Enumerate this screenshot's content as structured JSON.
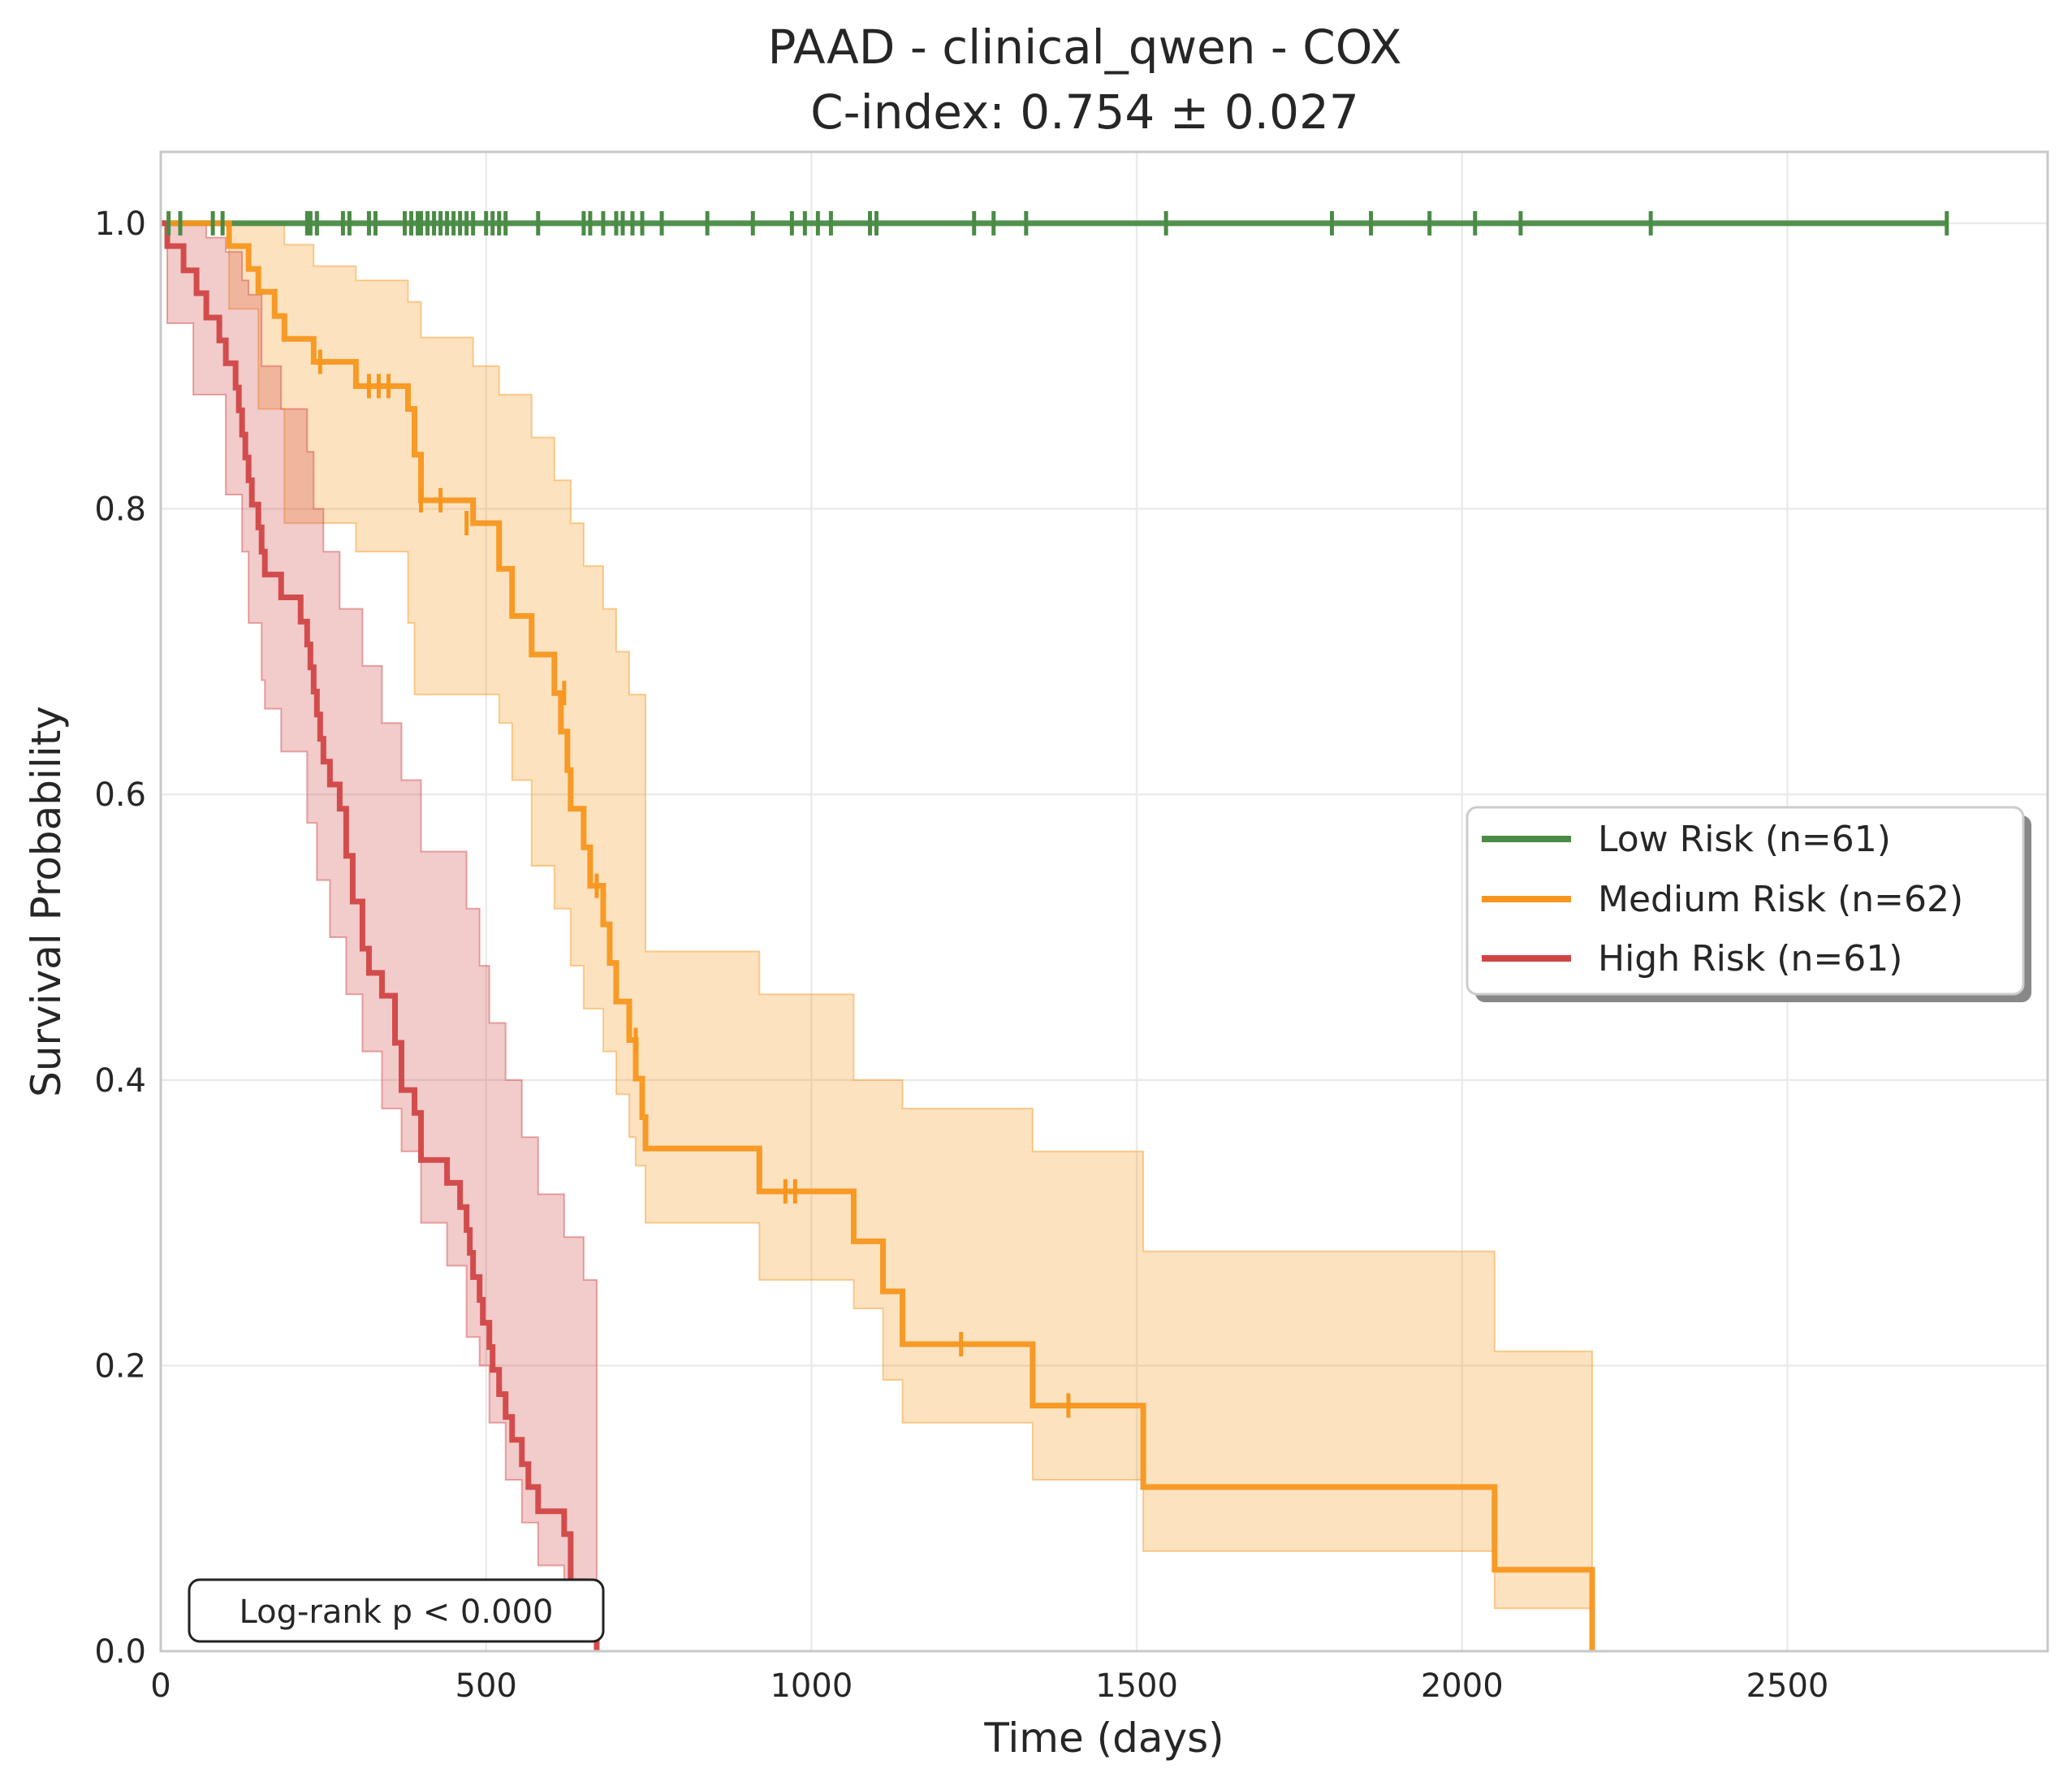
{
  "chart_data": {
    "type": "line",
    "title": "PAAD - clinical_qwen - COX",
    "subtitle": "C-index: 0.754 ± 0.027",
    "xlabel": "Time (days)",
    "ylabel": "Survival Probability",
    "xlim": [
      0,
      2900
    ],
    "ylim": [
      0,
      1.05
    ],
    "xticks": [
      0,
      500,
      1000,
      1500,
      2000,
      2500
    ],
    "xtick_labels": [
      "0",
      "500",
      "1000",
      "1500",
      "2000",
      "2500"
    ],
    "yticks": [
      0.0,
      0.2,
      0.4,
      0.6,
      0.8,
      1.0
    ],
    "ytick_labels": [
      "0.0",
      "0.2",
      "0.4",
      "0.6",
      "0.8",
      "1.0"
    ],
    "grid": true,
    "legend_position": "center-right",
    "annotation": "Log-rank p < 0.000",
    "series": [
      {
        "name": "Low Risk (n=61)",
        "color": "#4a8b45",
        "steps": [
          [
            0,
            1.0
          ],
          [
            2745,
            1.0
          ]
        ],
        "ci_lower": [],
        "ci_upper": [],
        "censored": [
          [
            12,
            1.0
          ],
          [
            30,
            1.0
          ],
          [
            80,
            1.0
          ],
          [
            95,
            1.0
          ],
          [
            225,
            1.0
          ],
          [
            230,
            1.0
          ],
          [
            240,
            1.0
          ],
          [
            280,
            1.0
          ],
          [
            290,
            1.0
          ],
          [
            320,
            1.0
          ],
          [
            330,
            1.0
          ],
          [
            375,
            1.0
          ],
          [
            385,
            1.0
          ],
          [
            395,
            1.0
          ],
          [
            400,
            1.0
          ],
          [
            410,
            1.0
          ],
          [
            420,
            1.0
          ],
          [
            430,
            1.0
          ],
          [
            440,
            1.0
          ],
          [
            450,
            1.0
          ],
          [
            460,
            1.0
          ],
          [
            470,
            1.0
          ],
          [
            480,
            1.0
          ],
          [
            500,
            1.0
          ],
          [
            510,
            1.0
          ],
          [
            520,
            1.0
          ],
          [
            530,
            1.0
          ],
          [
            580,
            1.0
          ],
          [
            650,
            1.0
          ],
          [
            660,
            1.0
          ],
          [
            680,
            1.0
          ],
          [
            700,
            1.0
          ],
          [
            710,
            1.0
          ],
          [
            725,
            1.0
          ],
          [
            740,
            1.0
          ],
          [
            770,
            1.0
          ],
          [
            840,
            1.0
          ],
          [
            910,
            1.0
          ],
          [
            970,
            1.0
          ],
          [
            990,
            1.0
          ],
          [
            1010,
            1.0
          ],
          [
            1030,
            1.0
          ],
          [
            1090,
            1.0
          ],
          [
            1100,
            1.0
          ],
          [
            1250,
            1.0
          ],
          [
            1280,
            1.0
          ],
          [
            1330,
            1.0
          ],
          [
            1545,
            1.0
          ],
          [
            1800,
            1.0
          ],
          [
            1860,
            1.0
          ],
          [
            1950,
            1.0
          ],
          [
            2020,
            1.0
          ],
          [
            2090,
            1.0
          ],
          [
            2290,
            1.0
          ],
          [
            2745,
            1.0
          ]
        ]
      },
      {
        "name": "Medium Risk (n=62)",
        "color": "#f7961e",
        "steps": [
          [
            0,
            1.0
          ],
          [
            105,
            1.0
          ],
          [
            105,
            0.984
          ],
          [
            135,
            0.968
          ],
          [
            150,
            0.952
          ],
          [
            175,
            0.935
          ],
          [
            190,
            0.919
          ],
          [
            235,
            0.903
          ],
          [
            300,
            0.886
          ],
          [
            380,
            0.87
          ],
          [
            390,
            0.838
          ],
          [
            400,
            0.806
          ],
          [
            480,
            0.79
          ],
          [
            520,
            0.758
          ],
          [
            540,
            0.725
          ],
          [
            570,
            0.698
          ],
          [
            605,
            0.671
          ],
          [
            615,
            0.644
          ],
          [
            625,
            0.617
          ],
          [
            630,
            0.59
          ],
          [
            650,
            0.563
          ],
          [
            660,
            0.536
          ],
          [
            680,
            0.509
          ],
          [
            690,
            0.482
          ],
          [
            700,
            0.455
          ],
          [
            720,
            0.428
          ],
          [
            730,
            0.401
          ],
          [
            740,
            0.374
          ],
          [
            745,
            0.352
          ],
          [
            920,
            0.322
          ],
          [
            1065,
            0.287
          ],
          [
            1110,
            0.252
          ],
          [
            1140,
            0.215
          ],
          [
            1340,
            0.172
          ],
          [
            1510,
            0.115
          ],
          [
            2050,
            0.057
          ],
          [
            2200,
            0.0
          ]
        ],
        "ci_lower": [
          [
            0,
            1.0
          ],
          [
            105,
            0.94
          ],
          [
            150,
            0.87
          ],
          [
            190,
            0.79
          ],
          [
            300,
            0.77
          ],
          [
            380,
            0.72
          ],
          [
            390,
            0.67
          ],
          [
            520,
            0.65
          ],
          [
            540,
            0.61
          ],
          [
            570,
            0.55
          ],
          [
            605,
            0.52
          ],
          [
            630,
            0.48
          ],
          [
            650,
            0.45
          ],
          [
            680,
            0.42
          ],
          [
            700,
            0.39
          ],
          [
            720,
            0.36
          ],
          [
            730,
            0.34
          ],
          [
            745,
            0.3
          ],
          [
            920,
            0.26
          ],
          [
            1065,
            0.24
          ],
          [
            1110,
            0.19
          ],
          [
            1140,
            0.16
          ],
          [
            1340,
            0.12
          ],
          [
            1510,
            0.07
          ],
          [
            2050,
            0.03
          ],
          [
            2200,
            0.03
          ]
        ],
        "ci_upper": [
          [
            0,
            1.0
          ],
          [
            105,
            1.0
          ],
          [
            135,
            1.0
          ],
          [
            190,
            0.985
          ],
          [
            235,
            0.97
          ],
          [
            300,
            0.96
          ],
          [
            380,
            0.945
          ],
          [
            400,
            0.92
          ],
          [
            480,
            0.9
          ],
          [
            520,
            0.88
          ],
          [
            570,
            0.85
          ],
          [
            605,
            0.82
          ],
          [
            630,
            0.79
          ],
          [
            650,
            0.76
          ],
          [
            680,
            0.73
          ],
          [
            700,
            0.7
          ],
          [
            720,
            0.67
          ],
          [
            745,
            0.49
          ],
          [
            920,
            0.46
          ],
          [
            1065,
            0.4
          ],
          [
            1140,
            0.38
          ],
          [
            1340,
            0.35
          ],
          [
            1510,
            0.28
          ],
          [
            2050,
            0.21
          ],
          [
            2200,
            0.21
          ]
        ],
        "censored": [
          [
            245,
            0.903
          ],
          [
            320,
            0.886
          ],
          [
            335,
            0.886
          ],
          [
            350,
            0.886
          ],
          [
            400,
            0.806
          ],
          [
            430,
            0.806
          ],
          [
            470,
            0.79
          ],
          [
            620,
            0.671
          ],
          [
            670,
            0.536
          ],
          [
            730,
            0.428
          ],
          [
            960,
            0.322
          ],
          [
            975,
            0.322
          ],
          [
            1230,
            0.215
          ],
          [
            1395,
            0.172
          ]
        ]
      },
      {
        "name": "High Risk (n=61)",
        "color": "#d14444",
        "steps": [
          [
            0,
            1.0
          ],
          [
            10,
            0.984
          ],
          [
            35,
            0.967
          ],
          [
            55,
            0.951
          ],
          [
            70,
            0.934
          ],
          [
            90,
            0.918
          ],
          [
            100,
            0.902
          ],
          [
            115,
            0.885
          ],
          [
            120,
            0.869
          ],
          [
            125,
            0.852
          ],
          [
            130,
            0.836
          ],
          [
            135,
            0.82
          ],
          [
            140,
            0.803
          ],
          [
            150,
            0.787
          ],
          [
            155,
            0.77
          ],
          [
            160,
            0.754
          ],
          [
            185,
            0.738
          ],
          [
            215,
            0.721
          ],
          [
            225,
            0.705
          ],
          [
            230,
            0.689
          ],
          [
            235,
            0.672
          ],
          [
            240,
            0.656
          ],
          [
            245,
            0.639
          ],
          [
            250,
            0.623
          ],
          [
            260,
            0.607
          ],
          [
            275,
            0.59
          ],
          [
            285,
            0.557
          ],
          [
            295,
            0.525
          ],
          [
            310,
            0.492
          ],
          [
            320,
            0.475
          ],
          [
            340,
            0.459
          ],
          [
            360,
            0.426
          ],
          [
            370,
            0.393
          ],
          [
            390,
            0.377
          ],
          [
            400,
            0.344
          ],
          [
            440,
            0.328
          ],
          [
            460,
            0.311
          ],
          [
            470,
            0.295
          ],
          [
            475,
            0.279
          ],
          [
            480,
            0.262
          ],
          [
            490,
            0.246
          ],
          [
            495,
            0.23
          ],
          [
            505,
            0.213
          ],
          [
            510,
            0.197
          ],
          [
            520,
            0.18
          ],
          [
            530,
            0.164
          ],
          [
            540,
            0.148
          ],
          [
            555,
            0.131
          ],
          [
            565,
            0.115
          ],
          [
            580,
            0.098
          ],
          [
            620,
            0.082
          ],
          [
            630,
            0.049
          ],
          [
            650,
            0.033
          ],
          [
            660,
            0.016
          ],
          [
            670,
            0.0
          ]
        ],
        "ci_lower": [
          [
            0,
            1.0
          ],
          [
            10,
            0.93
          ],
          [
            50,
            0.88
          ],
          [
            100,
            0.81
          ],
          [
            125,
            0.77
          ],
          [
            135,
            0.72
          ],
          [
            155,
            0.68
          ],
          [
            160,
            0.66
          ],
          [
            185,
            0.63
          ],
          [
            225,
            0.58
          ],
          [
            240,
            0.54
          ],
          [
            260,
            0.5
          ],
          [
            285,
            0.46
          ],
          [
            310,
            0.42
          ],
          [
            340,
            0.38
          ],
          [
            370,
            0.35
          ],
          [
            400,
            0.3
          ],
          [
            440,
            0.27
          ],
          [
            470,
            0.22
          ],
          [
            490,
            0.2
          ],
          [
            505,
            0.16
          ],
          [
            530,
            0.12
          ],
          [
            555,
            0.09
          ],
          [
            580,
            0.06
          ],
          [
            620,
            0.04
          ],
          [
            650,
            0.01
          ],
          [
            670,
            0.0
          ]
        ],
        "ci_upper": [
          [
            0,
            1.0
          ],
          [
            35,
            1.0
          ],
          [
            70,
            0.99
          ],
          [
            100,
            0.98
          ],
          [
            125,
            0.96
          ],
          [
            135,
            0.95
          ],
          [
            155,
            0.9
          ],
          [
            185,
            0.87
          ],
          [
            225,
            0.84
          ],
          [
            235,
            0.8
          ],
          [
            250,
            0.77
          ],
          [
            275,
            0.73
          ],
          [
            310,
            0.69
          ],
          [
            340,
            0.65
          ],
          [
            370,
            0.61
          ],
          [
            400,
            0.56
          ],
          [
            470,
            0.52
          ],
          [
            490,
            0.48
          ],
          [
            505,
            0.44
          ],
          [
            530,
            0.4
          ],
          [
            555,
            0.36
          ],
          [
            580,
            0.32
          ],
          [
            620,
            0.29
          ],
          [
            650,
            0.26
          ],
          [
            670,
            0.26
          ]
        ],
        "censored": []
      }
    ]
  }
}
